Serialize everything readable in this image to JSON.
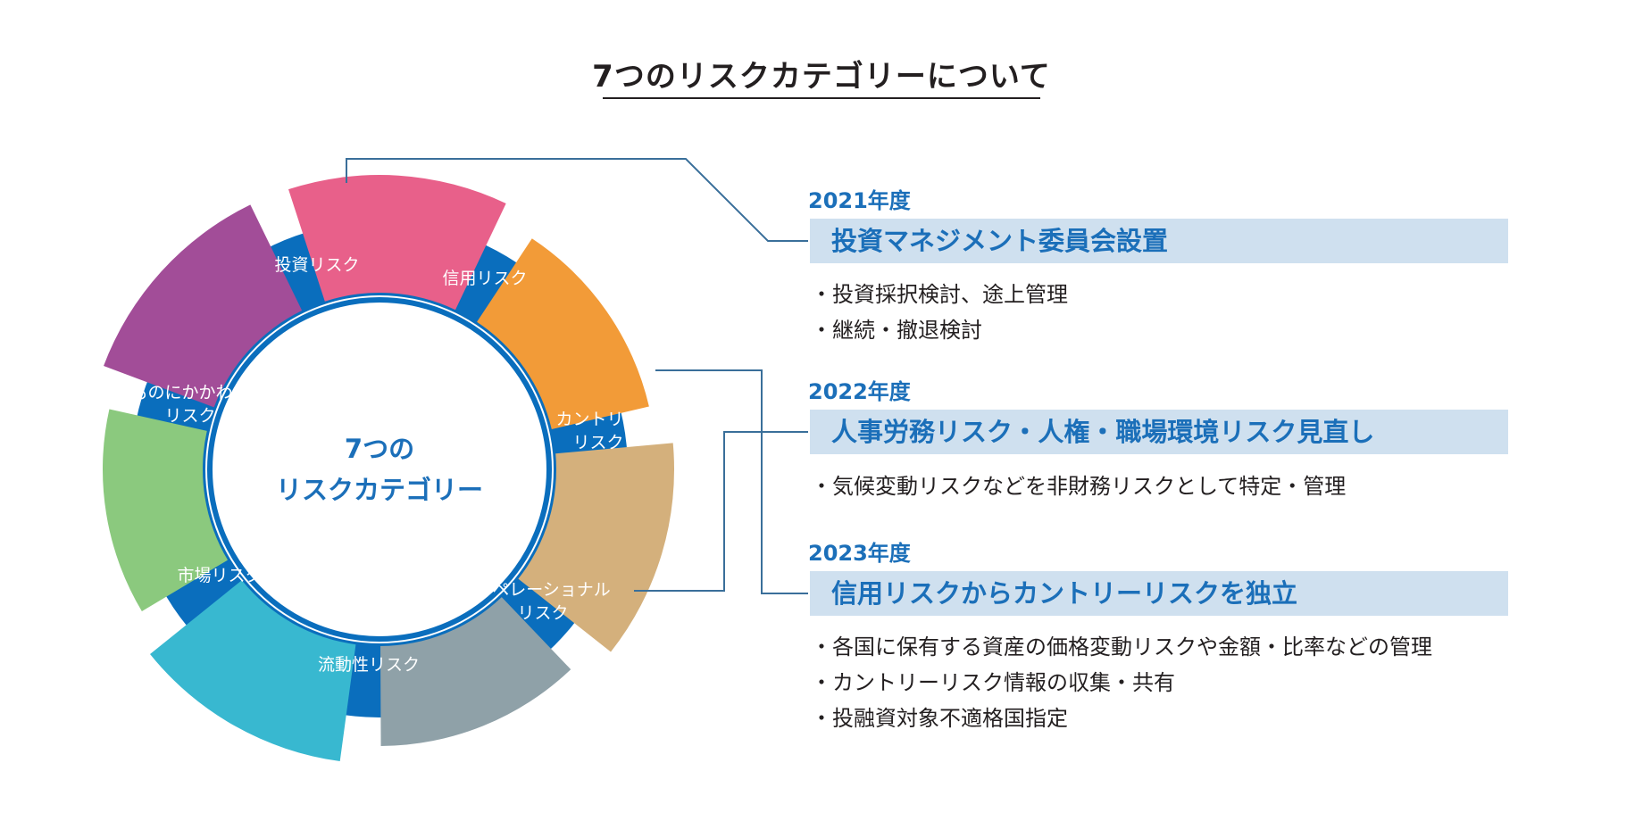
{
  "title": "7つのリスクカテゴリーについて",
  "wheel": {
    "center_lines": [
      "7つの",
      "リスクカテゴリー"
    ],
    "ring_color": "#0a6ebd",
    "segments": [
      {
        "id": "investment",
        "lines": [
          "投資リスク"
        ],
        "color": "#e8608a"
      },
      {
        "id": "credit",
        "lines": [
          "信用リスク"
        ],
        "color": "#f29b38"
      },
      {
        "id": "country",
        "lines": [
          "カントリー",
          "リスク"
        ],
        "color": "#d4b07c"
      },
      {
        "id": "operational",
        "lines": [
          "オペレーショナル",
          "リスク"
        ],
        "color": "#8fa1a8"
      },
      {
        "id": "liquidity",
        "lines": [
          "流動性リスク"
        ],
        "color": "#38b8d0"
      },
      {
        "id": "market",
        "lines": [
          "市場リスク"
        ],
        "color": "#8bc97e"
      },
      {
        "id": "goods",
        "lines": [
          "ものにかかわる",
          "リスク"
        ],
        "color": "#a24d98"
      }
    ]
  },
  "timeline": [
    {
      "year": "2021年度",
      "heading": "投資マネジメント委員会設置",
      "bullets": [
        "投資採択検討、途上管理",
        "継続・撤退検討"
      ]
    },
    {
      "year": "2022年度",
      "heading": "人事労務リスク・人権・職場環境リスク見直し",
      "bullets": [
        "気候変動リスクなどを非財務リスクとして特定・管理"
      ]
    },
    {
      "year": "2023年度",
      "heading": "信用リスクからカントリーリスクを独立",
      "bullets": [
        "各国に保有する資産の価格変動リスクや金額・比率などの管理",
        "カントリーリスク情報の収集・共有",
        "投融資対象不適格国指定"
      ]
    }
  ],
  "colors": {
    "accent_blue": "#1b6fb9",
    "band": "#cfe0ef",
    "connector": "#3a6f9a"
  }
}
